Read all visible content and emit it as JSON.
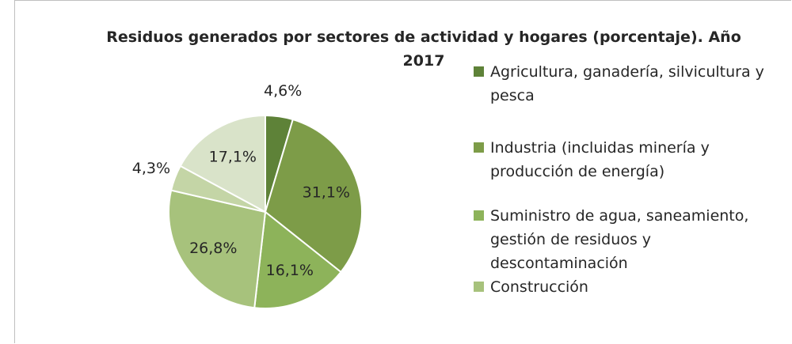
{
  "chart_data": {
    "type": "pie",
    "title": "Residuos generados por sectores de actividad y hogares (porcentaje). Año 2017",
    "categories": [
      "Agricultura, ganadería, silvicultura y pesca",
      "Industria (incluidas minería y producción de energía)",
      "Suministro de agua, saneamiento, gestión de residuos y descontaminación",
      "Construcción",
      null,
      null
    ],
    "values": [
      4.6,
      31.1,
      16.1,
      26.8,
      4.3,
      17.1
    ],
    "value_labels": [
      "4,6%",
      "31,1%",
      "16,1%",
      "26,8%",
      "4,3%",
      "17,1%"
    ],
    "colors": [
      "#5e8238",
      "#7d9c48",
      "#8db35a",
      "#a7c27c",
      "#c4d5a6",
      "#d9e3c9"
    ],
    "legend": "right"
  }
}
